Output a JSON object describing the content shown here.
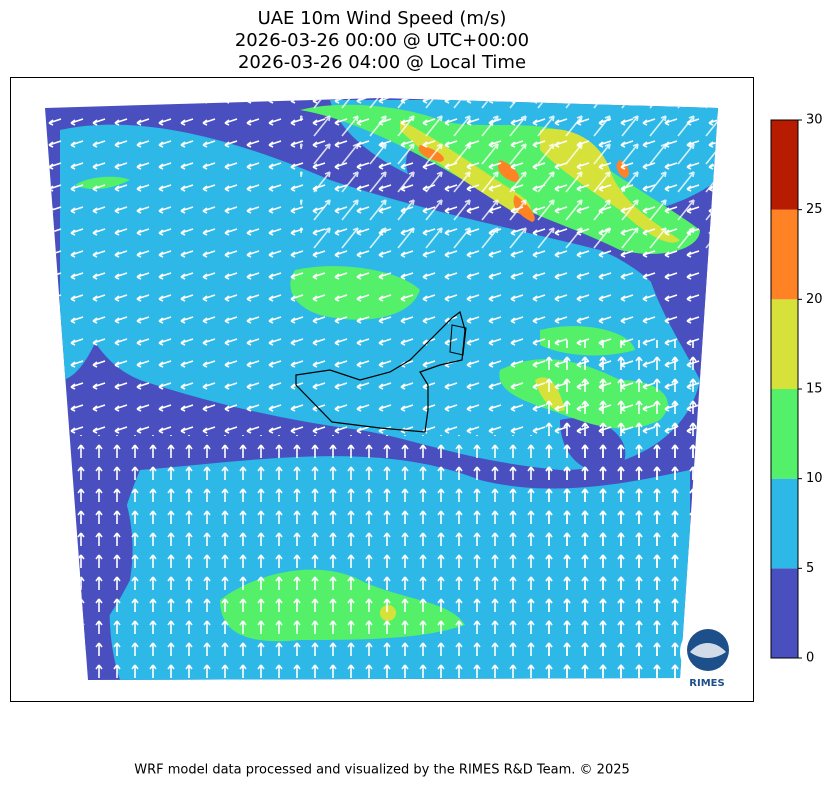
{
  "title": [
    "UAE 10m Wind Speed (m/s)",
    "2026-03-26 00:00 @ UTC+00:00",
    "2026-03-26 04:00 @ Local Time"
  ],
  "colorbar": {
    "lim": [
      0,
      30
    ],
    "ticks": [
      0,
      5,
      10,
      15,
      20,
      25,
      30
    ],
    "colors": [
      "#4a4fbf",
      "#2db8e8",
      "#55f06a",
      "#d6e23a",
      "#ff8224",
      "#b71c00"
    ]
  },
  "logo": "RIMES",
  "footer": "WRF model data processed and visualized by the RIMES R&D Team. © 2025"
}
